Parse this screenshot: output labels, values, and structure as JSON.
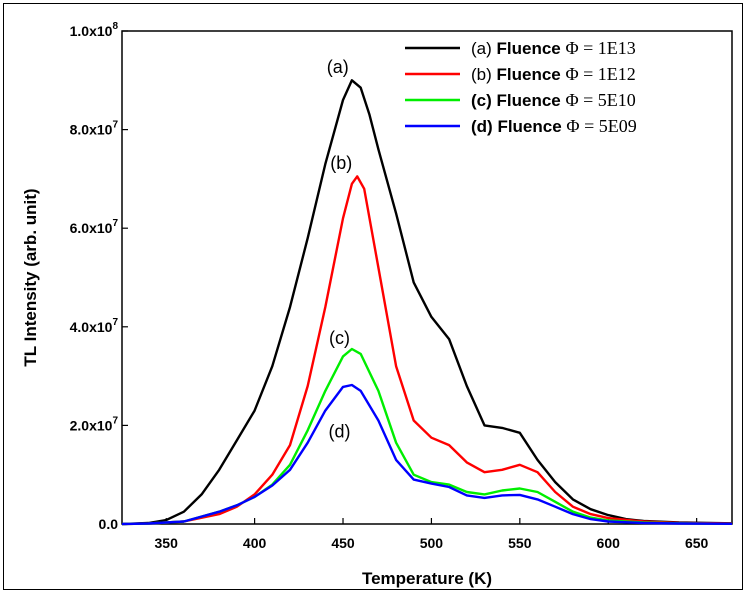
{
  "chart_data": {
    "type": "line",
    "xlabel": "Temperature (K)",
    "ylabel": "TL Intensity (arb. unit)",
    "xlim": [
      325,
      670
    ],
    "ylim": [
      0,
      100000000
    ],
    "x_ticks": [
      350,
      400,
      450,
      500,
      550,
      600,
      650
    ],
    "y_ticks": [
      {
        "value": 0,
        "mant": "0.0",
        "exp": ""
      },
      {
        "value": 20000000,
        "mant": "2.0x10",
        "exp": "7"
      },
      {
        "value": 40000000,
        "mant": "4.0x10",
        "exp": "7"
      },
      {
        "value": 60000000,
        "mant": "6.0x10",
        "exp": "7"
      },
      {
        "value": 80000000,
        "mant": "8.0x10",
        "exp": "7"
      },
      {
        "value": 100000000,
        "mant": "1.0x10",
        "exp": "8"
      }
    ],
    "grid": false,
    "legend_position": "top-right",
    "series": [
      {
        "name": "(a) Fluence Φ = 1E13",
        "legend_prefix": "(a)",
        "legend_bold": "Fluence",
        "legend_suffix": "Φ = 1E13",
        "prefix_bold": false,
        "color": "#000000",
        "annotation": "(a)",
        "anno_x": 447,
        "anno_y": 91500000,
        "points": [
          [
            325,
            0
          ],
          [
            340,
            200000
          ],
          [
            350,
            800000
          ],
          [
            360,
            2500000
          ],
          [
            370,
            6000000
          ],
          [
            380,
            11000000
          ],
          [
            390,
            17000000
          ],
          [
            400,
            23000000
          ],
          [
            410,
            32000000
          ],
          [
            420,
            44000000
          ],
          [
            430,
            58000000
          ],
          [
            440,
            73000000
          ],
          [
            450,
            86000000
          ],
          [
            455,
            90000000
          ],
          [
            460,
            88500000
          ],
          [
            465,
            83000000
          ],
          [
            470,
            76000000
          ],
          [
            480,
            63000000
          ],
          [
            490,
            49000000
          ],
          [
            500,
            42000000
          ],
          [
            510,
            37500000
          ],
          [
            520,
            28000000
          ],
          [
            530,
            20000000
          ],
          [
            540,
            19500000
          ],
          [
            550,
            18500000
          ],
          [
            560,
            13000000
          ],
          [
            570,
            8500000
          ],
          [
            580,
            5000000
          ],
          [
            590,
            3000000
          ],
          [
            600,
            1800000
          ],
          [
            610,
            1000000
          ],
          [
            620,
            600000
          ],
          [
            640,
            300000
          ],
          [
            670,
            150000
          ]
        ]
      },
      {
        "name": "(b) Fluence Φ = 1E12",
        "legend_prefix": "(b)",
        "legend_bold": "Fluence",
        "legend_suffix": "Φ = 1E12",
        "prefix_bold": false,
        "color": "#ff0000",
        "annotation": "(b)",
        "anno_x": 449,
        "anno_y": 72000000,
        "points": [
          [
            325,
            0
          ],
          [
            340,
            100000
          ],
          [
            360,
            500000
          ],
          [
            380,
            2000000
          ],
          [
            390,
            3500000
          ],
          [
            400,
            6000000
          ],
          [
            410,
            10000000
          ],
          [
            420,
            16000000
          ],
          [
            430,
            28000000
          ],
          [
            440,
            44000000
          ],
          [
            450,
            62000000
          ],
          [
            455,
            69000000
          ],
          [
            458,
            70500000
          ],
          [
            462,
            68000000
          ],
          [
            470,
            52000000
          ],
          [
            480,
            32000000
          ],
          [
            490,
            21000000
          ],
          [
            500,
            17500000
          ],
          [
            510,
            16000000
          ],
          [
            520,
            12500000
          ],
          [
            530,
            10500000
          ],
          [
            540,
            11000000
          ],
          [
            550,
            12000000
          ],
          [
            560,
            10500000
          ],
          [
            570,
            6500000
          ],
          [
            580,
            3500000
          ],
          [
            590,
            2000000
          ],
          [
            600,
            1200000
          ],
          [
            620,
            500000
          ],
          [
            640,
            200000
          ],
          [
            670,
            100000
          ]
        ]
      },
      {
        "name": "(c) Fluence Φ = 5E10",
        "legend_prefix": "(c)",
        "legend_bold": "Fluence",
        "legend_suffix": "Φ = 5E10",
        "prefix_bold": true,
        "color": "#00ee00",
        "annotation": "(c)",
        "anno_x": 448,
        "anno_y": 36500000,
        "points": [
          [
            325,
            0
          ],
          [
            340,
            100000
          ],
          [
            360,
            500000
          ],
          [
            380,
            2500000
          ],
          [
            390,
            3800000
          ],
          [
            400,
            5500000
          ],
          [
            410,
            8000000
          ],
          [
            420,
            12000000
          ],
          [
            430,
            19000000
          ],
          [
            440,
            27000000
          ],
          [
            450,
            34000000
          ],
          [
            455,
            35500000
          ],
          [
            460,
            34500000
          ],
          [
            470,
            27000000
          ],
          [
            480,
            16500000
          ],
          [
            490,
            10000000
          ],
          [
            500,
            8500000
          ],
          [
            510,
            8000000
          ],
          [
            520,
            6500000
          ],
          [
            530,
            6000000
          ],
          [
            540,
            6800000
          ],
          [
            550,
            7200000
          ],
          [
            560,
            6500000
          ],
          [
            570,
            4500000
          ],
          [
            580,
            2500000
          ],
          [
            590,
            1300000
          ],
          [
            600,
            700000
          ],
          [
            620,
            300000
          ],
          [
            640,
            150000
          ],
          [
            670,
            50000
          ]
        ]
      },
      {
        "name": "(d) Fluence Φ = 5E09",
        "legend_prefix": "(d)",
        "legend_bold": "Fluence",
        "legend_suffix": "Φ = 5E09",
        "prefix_bold": true,
        "color": "#0000ff",
        "annotation": "(d)",
        "anno_x": 448,
        "anno_y": 17500000,
        "points": [
          [
            325,
            0
          ],
          [
            340,
            100000
          ],
          [
            360,
            500000
          ],
          [
            380,
            2500000
          ],
          [
            390,
            3800000
          ],
          [
            400,
            5500000
          ],
          [
            410,
            7800000
          ],
          [
            420,
            11000000
          ],
          [
            430,
            16500000
          ],
          [
            440,
            23000000
          ],
          [
            450,
            27800000
          ],
          [
            455,
            28200000
          ],
          [
            460,
            27000000
          ],
          [
            470,
            21000000
          ],
          [
            480,
            13000000
          ],
          [
            490,
            9000000
          ],
          [
            500,
            8200000
          ],
          [
            510,
            7500000
          ],
          [
            520,
            5800000
          ],
          [
            530,
            5300000
          ],
          [
            540,
            5800000
          ],
          [
            550,
            5900000
          ],
          [
            560,
            5000000
          ],
          [
            570,
            3500000
          ],
          [
            580,
            2000000
          ],
          [
            590,
            1000000
          ],
          [
            600,
            500000
          ],
          [
            620,
            200000
          ],
          [
            640,
            100000
          ],
          [
            670,
            50000
          ]
        ]
      }
    ]
  }
}
